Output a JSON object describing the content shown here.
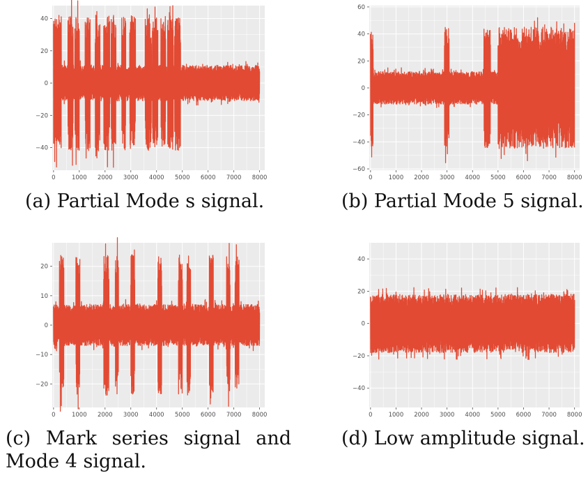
{
  "colors": {
    "panel_bg": "#ebebeb",
    "grid": "#ffffff",
    "signal": "#e24a33",
    "tick_text": "#4d4d4d"
  },
  "chart_data": [
    {
      "id": "a",
      "type": "line",
      "caption": "(a) Partial Mode s signal.",
      "xlim": [
        -50,
        8200
      ],
      "ylim": [
        -54,
        48
      ],
      "xticks": [
        0,
        1000,
        2000,
        3000,
        4000,
        5000,
        6000,
        7000,
        8000
      ],
      "yticks": [
        -40,
        -20,
        0,
        20,
        40
      ],
      "grid": true,
      "series": [
        {
          "n_samples": 8000,
          "baseline_amplitude": 11,
          "burst_amplitude": 42,
          "bursts": [
            [
              0,
              300
            ],
            [
              560,
              760
            ],
            [
              830,
              1000
            ],
            [
              1230,
              1420
            ],
            [
              1620,
              1800
            ],
            [
              1950,
              2180
            ],
            [
              2240,
              2420
            ],
            [
              2650,
              2800
            ],
            [
              2960,
              3180
            ],
            [
              3560,
              3800
            ],
            [
              3840,
              4050
            ],
            [
              4170,
              4350
            ],
            [
              4430,
              4650
            ],
            [
              4700,
              4930
            ]
          ]
        }
      ]
    },
    {
      "id": "b",
      "type": "line",
      "caption": "(b) Partial Mode 5 signal.",
      "xlim": [
        -50,
        8200
      ],
      "ylim": [
        -61,
        61
      ],
      "xticks": [
        0,
        1000,
        2000,
        3000,
        4000,
        5000,
        6000,
        7000,
        8000
      ],
      "yticks": [
        -60,
        -40,
        -20,
        0,
        20,
        40,
        60
      ],
      "grid": true,
      "series": [
        {
          "n_samples": 8000,
          "baseline_amplitude": 12,
          "burst_amplitude": 45,
          "bursts": [
            [
              0,
              100
            ],
            [
              2900,
              3080
            ],
            [
              4450,
              4700
            ],
            [
              5000,
              8000
            ]
          ]
        }
      ]
    },
    {
      "id": "c",
      "type": "line",
      "caption_line1": [
        "(c)",
        "Mark",
        "series",
        "signal",
        "and"
      ],
      "caption_line2": "Mode 4 signal.",
      "xlim": [
        -50,
        8200
      ],
      "ylim": [
        -28,
        28
      ],
      "xticks": [
        0,
        1000,
        2000,
        3000,
        4000,
        5000,
        6000,
        7000,
        8000
      ],
      "yticks": [
        -20,
        -10,
        0,
        10,
        20
      ],
      "grid": true,
      "series": [
        {
          "n_samples": 8000,
          "baseline_amplitude": 7,
          "burst_amplitude": 24,
          "bursts": [
            [
              230,
              400
            ],
            [
              870,
              1020
            ],
            [
              1950,
              2150
            ],
            [
              2400,
              2520
            ],
            [
              3000,
              3150
            ],
            [
              4050,
              4200
            ],
            [
              4850,
              5000
            ],
            [
              5180,
              5320
            ],
            [
              6050,
              6200
            ],
            [
              6720,
              6850
            ],
            [
              7050,
              7200
            ]
          ]
        }
      ]
    },
    {
      "id": "d",
      "type": "line",
      "caption": "(d) Low amplitude signal.",
      "xlim": [
        -50,
        8200
      ],
      "ylim": [
        -52,
        50
      ],
      "xticks": [
        0,
        1000,
        2000,
        3000,
        4000,
        5000,
        6000,
        7000,
        8000
      ],
      "yticks": [
        -40,
        -20,
        0,
        20,
        40
      ],
      "grid": true,
      "series": [
        {
          "n_samples": 8000,
          "baseline_amplitude": 18,
          "burst_amplitude": 40,
          "bursts": []
        }
      ]
    }
  ]
}
